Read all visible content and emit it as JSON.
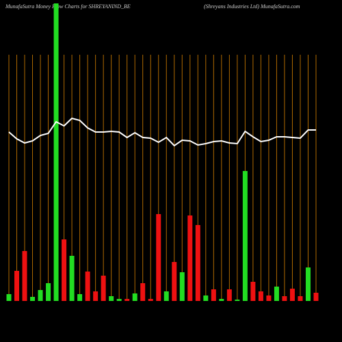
{
  "chart_data": {
    "type": "bar",
    "title": "MunafaSutra  Money Flow  Charts for SHREYANIND_BE",
    "subtitle": "(Shreyans Industries Ltd) MunafaSutra.com",
    "ylim": [
      0,
      440
    ],
    "grid": true,
    "series": [
      {
        "name": null,
        "colors": [
          "#22dd22",
          "#ee1111",
          "#ee1111",
          "#22dd22",
          "#22dd22",
          "#22dd22",
          "#22dd22",
          "#ee1111",
          "#22dd22",
          "#22dd22",
          "#ee1111",
          "#ee1111",
          "#ee1111",
          "#22dd22",
          "#22dd22",
          "#ee1111",
          "#22dd22",
          "#ee1111",
          "#ee1111",
          "#ee1111",
          "#22dd22",
          "#ee1111",
          "#22dd22",
          "#ee1111",
          "#ee1111",
          "#22dd22",
          "#ee1111",
          "#22dd22",
          "#ee1111",
          "#22dd22",
          "#22dd22",
          "#ee1111",
          "#ee1111",
          "#ee1111",
          "#22dd22",
          "#ee1111",
          "#ee1111",
          "#ee1111",
          "#22dd22",
          "#ee1111"
        ],
        "values": [
          10,
          44,
          73,
          6,
          16,
          26,
          435,
          90,
          66,
          10,
          43,
          14,
          37,
          7,
          3,
          3,
          11,
          26,
          3,
          127,
          14,
          57,
          42,
          125,
          111,
          8,
          17,
          3,
          17,
          2,
          190,
          28,
          14,
          8,
          21,
          7,
          18,
          7,
          49,
          12
        ]
      },
      {
        "name": null,
        "type": "line",
        "color": "#ffffff",
        "values": [
          247,
          237,
          231,
          234,
          242,
          245,
          262,
          256,
          267,
          264,
          253,
          247,
          247,
          248,
          247,
          239,
          246,
          239,
          238,
          232,
          239,
          227,
          235,
          234,
          228,
          230,
          233,
          234,
          231,
          230,
          248,
          240,
          233,
          235,
          240,
          240,
          239,
          238,
          250,
          250
        ]
      }
    ]
  }
}
